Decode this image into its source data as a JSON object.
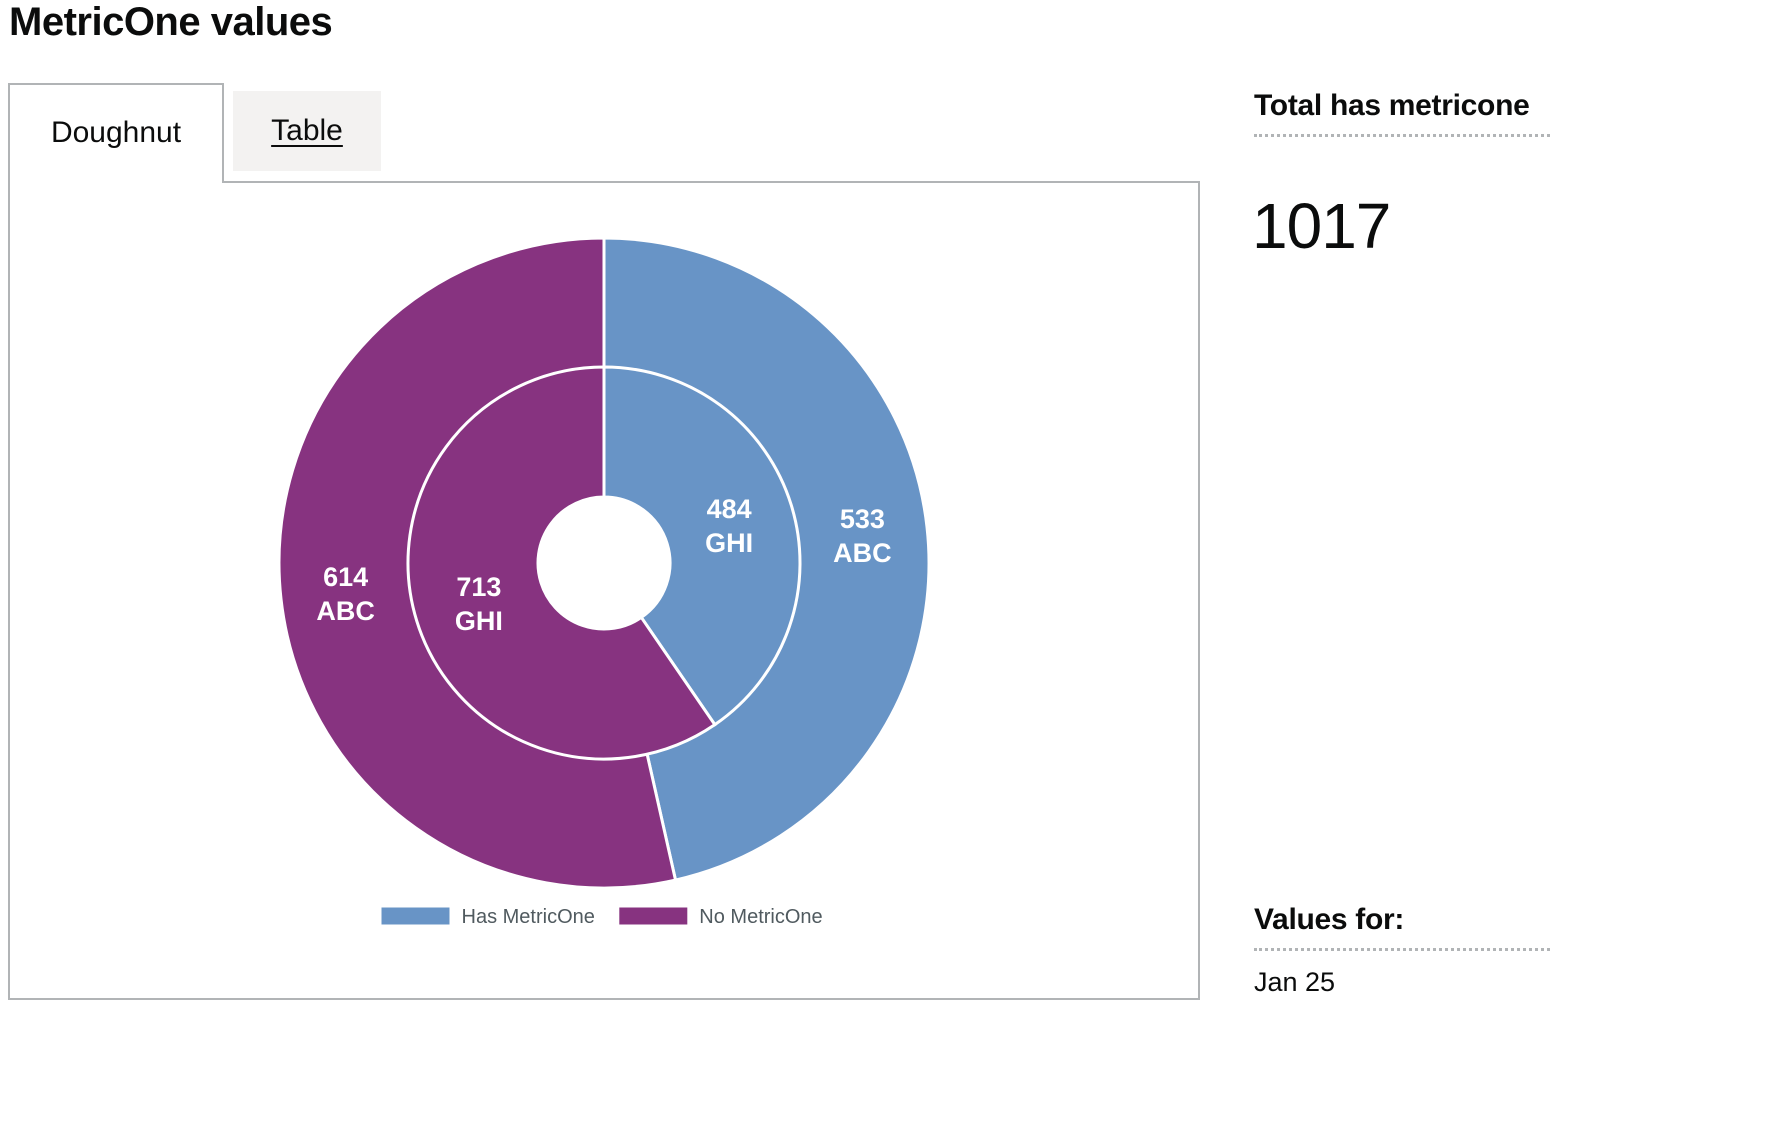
{
  "page": {
    "title": "MetricOne values"
  },
  "tabs": [
    {
      "label": "Doughnut",
      "selected": true
    },
    {
      "label": "Table",
      "selected": false
    }
  ],
  "sidebar": {
    "total_heading": "Total has metricone",
    "total_value": "1017",
    "values_heading": "Values for:",
    "values_date": "Jan 25"
  },
  "colors": {
    "has": "#6894c6",
    "no": "#873380"
  },
  "chart_data": {
    "type": "pie",
    "subtype": "nested-doughnut",
    "legend": {
      "placement": "bottom-center",
      "entries": [
        "Has MetricOne",
        "No MetricOne"
      ]
    },
    "rings": [
      {
        "name": "ABC",
        "position": "outer",
        "slices": [
          {
            "label": "Has MetricOne",
            "value": 533,
            "color": "#6894c6"
          },
          {
            "label": "No MetricOne",
            "value": 614,
            "color": "#873380"
          }
        ]
      },
      {
        "name": "GHI",
        "position": "inner",
        "slices": [
          {
            "label": "Has MetricOne",
            "value": 484,
            "color": "#6894c6"
          },
          {
            "label": "No MetricOne",
            "value": 713,
            "color": "#873380"
          }
        ]
      }
    ]
  }
}
